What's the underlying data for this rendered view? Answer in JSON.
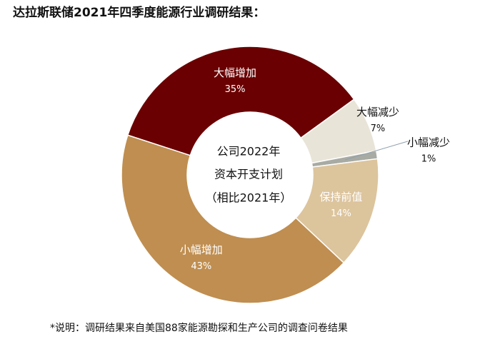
{
  "chart_data": {
    "type": "donut",
    "title": "达拉斯联储2021年四季度能源行业调研结果：",
    "center_text": [
      "公司2022年",
      "资本开支计划",
      "（相比2021年）"
    ],
    "categories": [
      "大幅增加",
      "大幅减少",
      "小幅减少",
      "保持前值",
      "小幅增加"
    ],
    "values": [
      35,
      7,
      1,
      14,
      43
    ],
    "value_labels": [
      "35%",
      "7%",
      "1%",
      "14%",
      "43%"
    ],
    "colors": [
      "#6a0001",
      "#e9e4d8",
      "#a8aba3",
      "#dcc49d",
      "#bf8e50"
    ],
    "footnote": "*说明：调研结果来自美国88家能源勘探和生产公司的调查问卷结果"
  }
}
